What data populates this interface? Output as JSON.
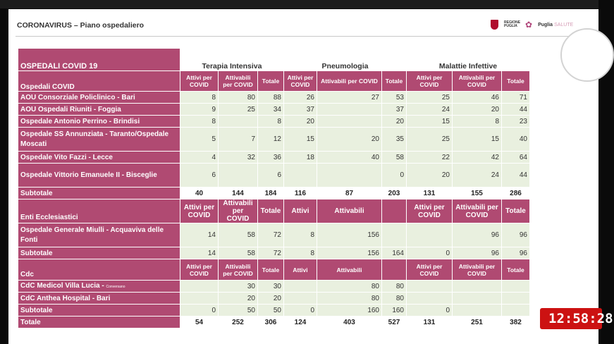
{
  "header": {
    "title": "CORONAVIRUS – Piano ospedaliero",
    "logo_regione": "REGIONE PUGLIA",
    "logo_puglia": "Puglia",
    "logo_salute": "SALUTE"
  },
  "table": {
    "title": "OSPEDALI COVID 19",
    "groups": [
      "Terapia Intensiva",
      "Pneumologia",
      "Malattie Infettive"
    ],
    "covid_label": "Ospedali COVID",
    "hdr_small": [
      "Attivi per COVID",
      "Attivabili per COVID",
      "Totale",
      "Attivi per COVID",
      "Attivabili per COVID",
      "Totale",
      "Attivi per COVID",
      "Attivabili per COVID",
      "Totale"
    ],
    "hospitals": [
      {
        "name": "AOU Consorziale Policlinico - Bari",
        "vals": [
          "8",
          "80",
          "88",
          "26",
          "27",
          "53",
          "25",
          "46",
          "71"
        ]
      },
      {
        "name": "AOU Ospedali Riuniti - Foggia",
        "vals": [
          "9",
          "25",
          "34",
          "37",
          "",
          "37",
          "24",
          "20",
          "44"
        ]
      },
      {
        "name": "Ospedale Antonio Perrino - Brindisi",
        "vals": [
          "8",
          "",
          "8",
          "20",
          "",
          "20",
          "15",
          "8",
          "23"
        ]
      },
      {
        "name": "Ospedale SS Annunziata - Taranto/Ospedale Moscati",
        "vals": [
          "5",
          "7",
          "12",
          "15",
          "20",
          "35",
          "25",
          "15",
          "40"
        ]
      },
      {
        "name": "Ospedale Vito Fazzi - Lecce",
        "vals": [
          "4",
          "32",
          "36",
          "18",
          "40",
          "58",
          "22",
          "42",
          "64"
        ]
      },
      {
        "name": "Ospedale Vittorio Emanuele II - Bisceglie",
        "vals": [
          "6",
          "",
          "6",
          "",
          "",
          "0",
          "20",
          "24",
          "44"
        ]
      }
    ],
    "subtotal_label": "Subtotale",
    "subtotal1": [
      "40",
      "144",
      "184",
      "116",
      "87",
      "203",
      "131",
      "155",
      "286"
    ],
    "enti_label": "Enti Ecclesiastici",
    "hdr_enti": [
      "Attivi per COVID",
      "Attivabili per COVID",
      "Totale",
      "Attivi",
      "Attivabili",
      "",
      "Attivi per COVID",
      "Attivabili per COVID",
      "Totale"
    ],
    "miulli": {
      "name": "Ospedale Generale Miulli - Acquaviva delle Fonti",
      "vals": [
        "14",
        "58",
        "72",
        "8",
        "156",
        "",
        "",
        "96",
        "96"
      ]
    },
    "subtotal2": [
      "14",
      "58",
      "72",
      "8",
      "156",
      "164",
      "0",
      "96",
      "96"
    ],
    "cdc_label": "Cdc",
    "hdr_cdc": [
      "Attivi per COVID",
      "Attivabili per COVID",
      "Totale",
      "Attivi",
      "Attivabili",
      "",
      "Attivi per COVID",
      "Attivabili per COVID",
      "Totale"
    ],
    "cdc1": {
      "name": "CdC Medicol Villa Lucia - ",
      "suffix": "Conversano",
      "vals": [
        "",
        "30",
        "30",
        "",
        "80",
        "80",
        "",
        "",
        ""
      ]
    },
    "cdc2": {
      "name": "CdC Anthea Hospital - Bari",
      "vals": [
        "",
        "20",
        "20",
        "",
        "80",
        "80",
        "",
        "",
        ""
      ]
    },
    "subtotal3": [
      "0",
      "50",
      "50",
      "0",
      "160",
      "160",
      "0",
      "",
      ""
    ],
    "total_label": "Totale",
    "total": [
      "54",
      "252",
      "306",
      "124",
      "403",
      "527",
      "131",
      "251",
      "382"
    ]
  },
  "clock": "12:58:28"
}
